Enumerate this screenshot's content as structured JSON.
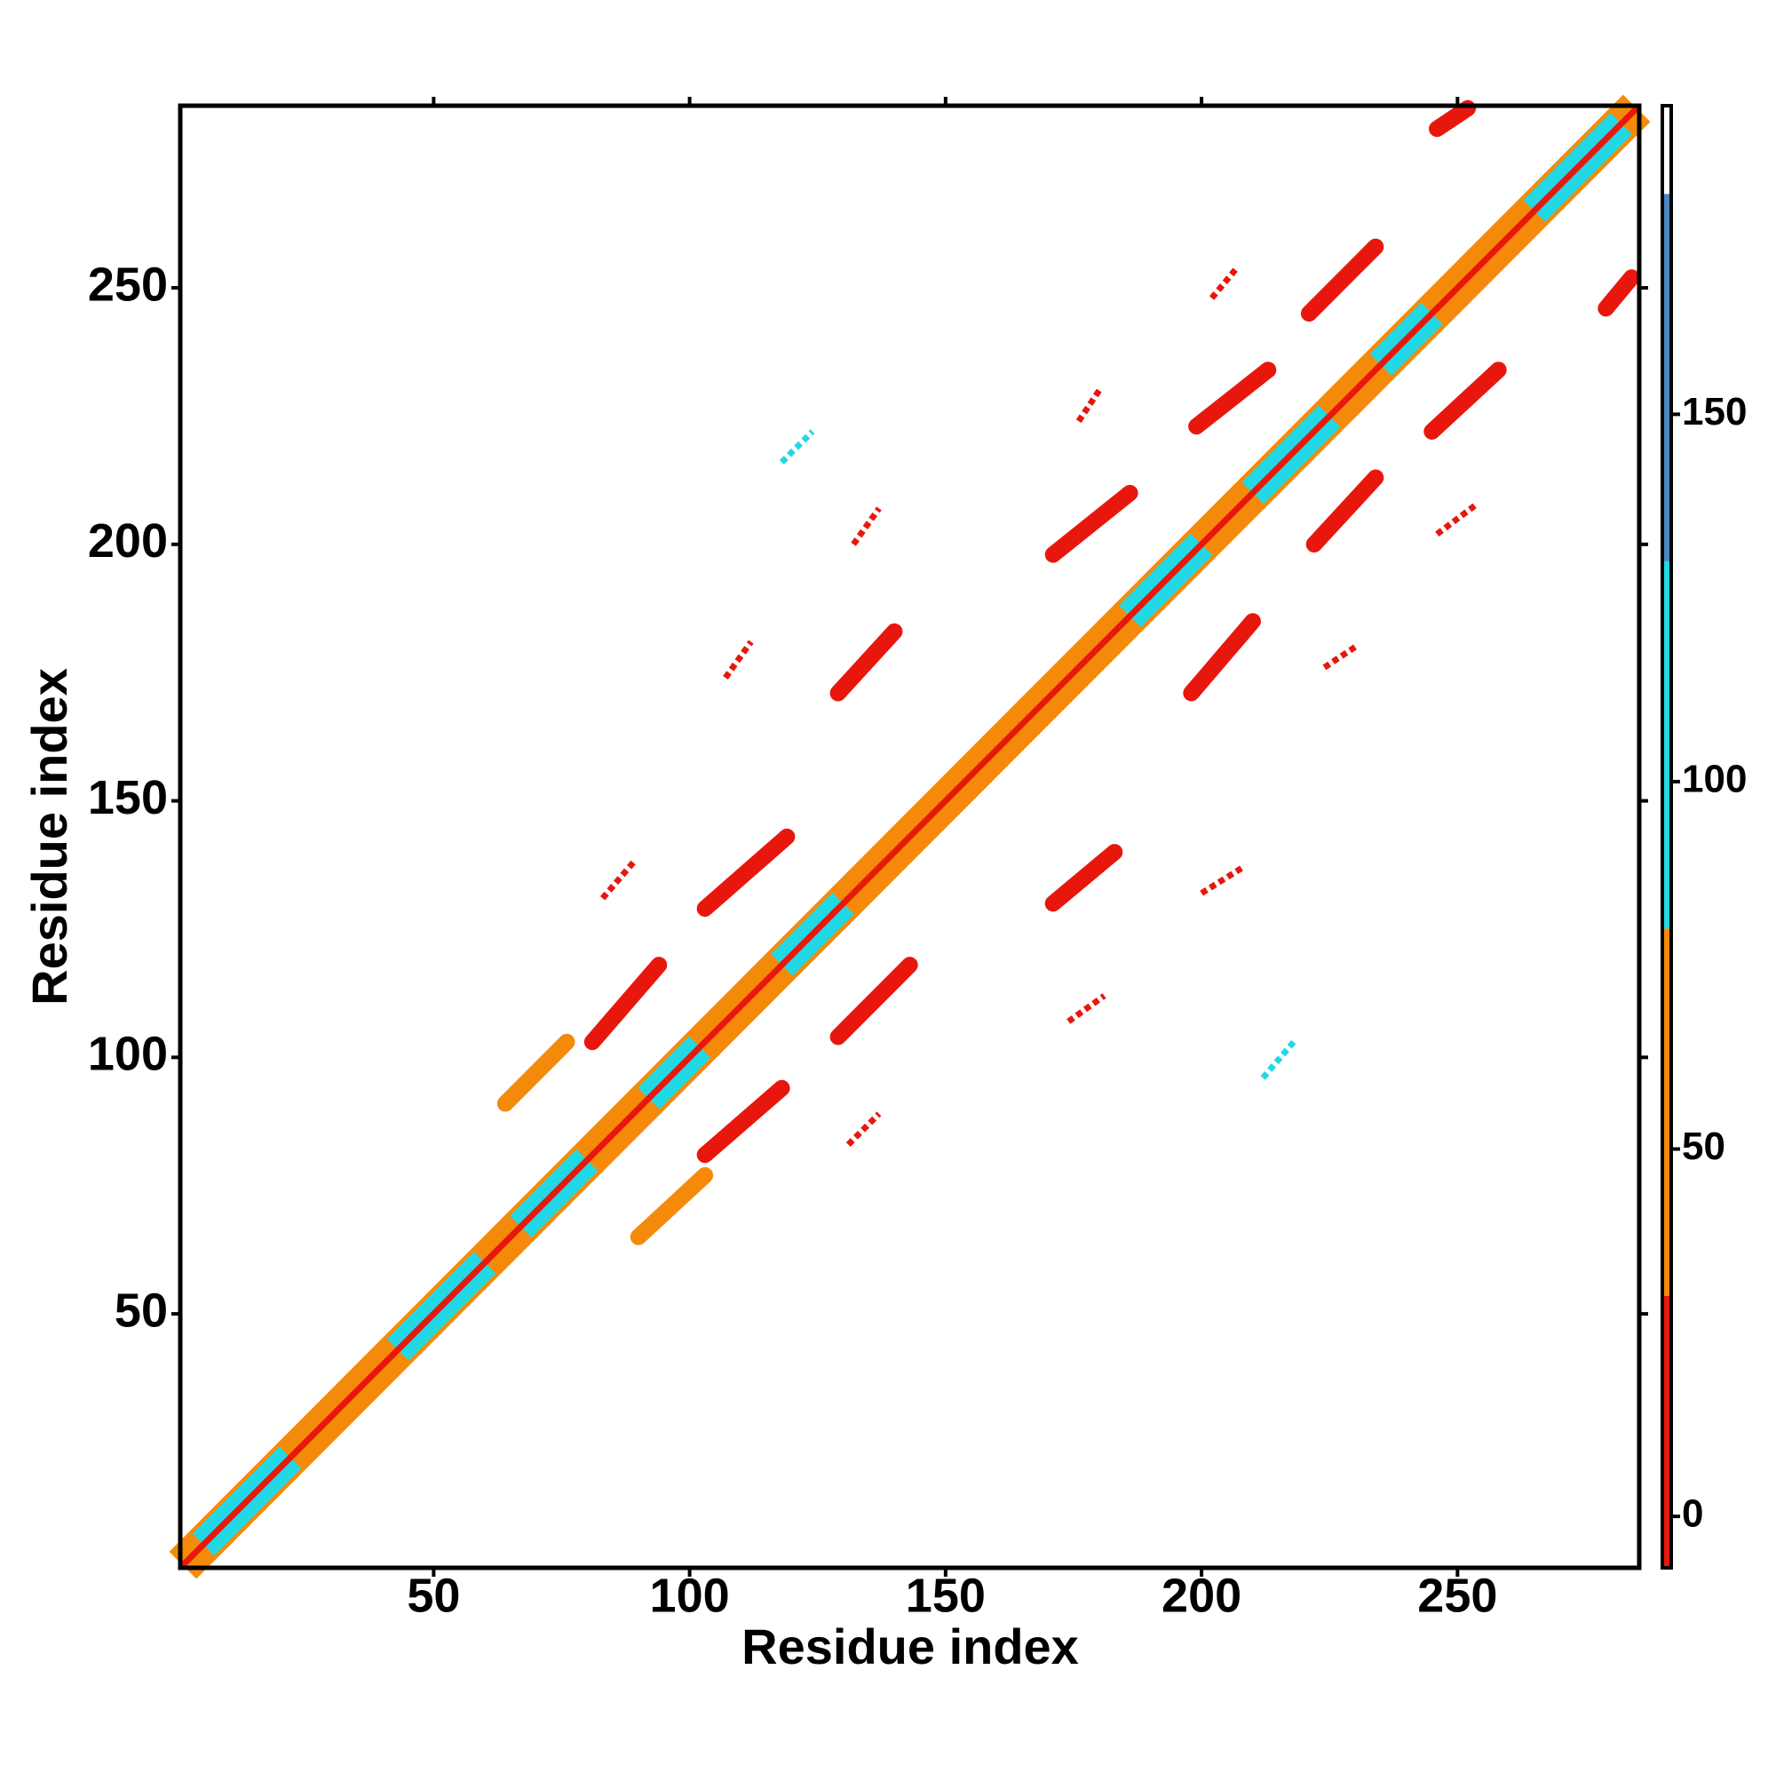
{
  "chart_data": {
    "type": "heatmap",
    "xlabel": "Residue index",
    "ylabel": "Residue index",
    "xlim": [
      0.5,
      285.5
    ],
    "ylim": [
      0.5,
      285.5
    ],
    "xticks": [
      50,
      100,
      150,
      200,
      250
    ],
    "yticks": [
      50,
      100,
      150,
      200,
      250
    ],
    "colorbar": {
      "lim": [
        -7,
        192
      ],
      "ticks": [
        0,
        50,
        100,
        150
      ],
      "bounds": [
        -7,
        30,
        80,
        130,
        180,
        192
      ],
      "colors": [
        "#e8170d",
        "#f58a0a",
        "#22d8e4",
        "#4a86c0",
        "#ffffff"
      ]
    },
    "diagonal": [
      {
        "range": [
          1,
          285
        ],
        "value": 60
      },
      {
        "range": [
          5,
          22
        ],
        "value": 110
      },
      {
        "range": [
          43,
          60
        ],
        "value": 110
      },
      {
        "range": [
          67,
          80
        ],
        "value": 110
      },
      {
        "range": [
          92,
          102
        ],
        "value": 110
      },
      {
        "range": [
          118,
          130
        ],
        "value": 110
      },
      {
        "range": [
          186,
          200
        ],
        "value": 110
      },
      {
        "range": [
          210,
          225
        ],
        "value": 110
      },
      {
        "range": [
          235,
          245
        ],
        "value": 110
      },
      {
        "range": [
          265,
          282
        ],
        "value": 110
      },
      {
        "range": [
          1,
          285
        ],
        "value": 0
      }
    ],
    "contacts": [
      {
        "x": [
          81,
          94
        ],
        "y": [
          103,
          118
        ],
        "value": 10
      },
      {
        "x": [
          103,
          119
        ],
        "y": [
          129,
          143
        ],
        "value": 10
      },
      {
        "x": [
          103,
          118
        ],
        "y": [
          81,
          94
        ],
        "value": 10
      },
      {
        "x": [
          129,
          143
        ],
        "y": [
          104,
          118
        ],
        "value": 10
      },
      {
        "x": [
          129,
          140
        ],
        "y": [
          171,
          183
        ],
        "value": 10
      },
      {
        "x": [
          171,
          183
        ],
        "y": [
          130,
          140
        ],
        "value": 10
      },
      {
        "x": [
          171,
          186
        ],
        "y": [
          198,
          210
        ],
        "value": 10
      },
      {
        "x": [
          198,
          210
        ],
        "y": [
          171,
          185
        ],
        "value": 10
      },
      {
        "x": [
          199,
          213
        ],
        "y": [
          223,
          234
        ],
        "value": 10
      },
      {
        "x": [
          222,
          234
        ],
        "y": [
          200,
          213
        ],
        "value": 10
      },
      {
        "x": [
          221,
          234
        ],
        "y": [
          245,
          258
        ],
        "value": 10
      },
      {
        "x": [
          245,
          258
        ],
        "y": [
          222,
          234
        ],
        "value": 10
      },
      {
        "x": [
          246,
          252
        ],
        "y": [
          281,
          285
        ],
        "value": 10
      },
      {
        "x": [
          279,
          284
        ],
        "y": [
          246,
          252
        ],
        "value": 10
      },
      {
        "x": [
          64,
          76
        ],
        "y": [
          91,
          103
        ],
        "value": 60
      },
      {
        "x": [
          90,
          103
        ],
        "y": [
          65,
          77
        ],
        "value": 60
      }
    ],
    "weak_contacts": [
      {
        "x": [
          107,
          112
        ],
        "y": [
          174,
          181
        ],
        "value": 5
      },
      {
        "x": [
          83,
          89
        ],
        "y": [
          131,
          138
        ],
        "value": 5
      },
      {
        "x": [
          131,
          137
        ],
        "y": [
          83,
          89
        ],
        "value": 5
      },
      {
        "x": [
          174,
          181
        ],
        "y": [
          107,
          112
        ],
        "value": 5
      },
      {
        "x": [
          132,
          137
        ],
        "y": [
          200,
          207
        ],
        "value": 5
      },
      {
        "x": [
          246,
          254
        ],
        "y": [
          202,
          208
        ],
        "value": 5
      },
      {
        "x": [
          176,
          180
        ],
        "y": [
          224,
          230
        ],
        "value": 5
      },
      {
        "x": [
          202,
          207
        ],
        "y": [
          248,
          254
        ],
        "value": 5
      },
      {
        "x": [
          200,
          208
        ],
        "y": [
          132,
          137
        ],
        "value": 5
      },
      {
        "x": [
          224,
          230
        ],
        "y": [
          176,
          180
        ],
        "value": 5
      },
      {
        "x": [
          212,
          218
        ],
        "y": [
          96,
          103
        ],
        "value": 110
      },
      {
        "x": [
          118,
          124
        ],
        "y": [
          216,
          222
        ],
        "value": 110
      }
    ]
  }
}
